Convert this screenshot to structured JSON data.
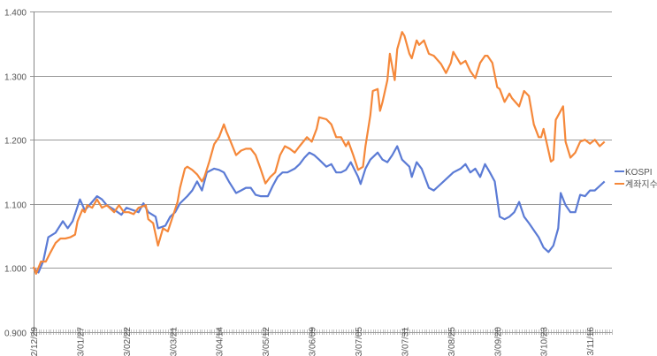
{
  "chart_data": {
    "type": "line",
    "title": "",
    "xlabel": "",
    "ylabel": "",
    "ylim": [
      0.9,
      1.4
    ],
    "xlim": [
      0,
      237
    ],
    "grid": true,
    "legend_position": "right",
    "y_ticks": [
      "0.900",
      "1.000",
      "1.100",
      "1.200",
      "1.300",
      "1.400"
    ],
    "y_tick_values": [
      0.9,
      1.0,
      1.1,
      1.2,
      1.3,
      1.4
    ],
    "x_ticks": [
      {
        "index": 0,
        "label": "22/12/29"
      },
      {
        "index": 19,
        "label": "23/01/27"
      },
      {
        "index": 38,
        "label": "23/02/22"
      },
      {
        "index": 57,
        "label": "23/03/21"
      },
      {
        "index": 76,
        "label": "23/04/14"
      },
      {
        "index": 95,
        "label": "23/05/12"
      },
      {
        "index": 114,
        "label": "23/06/09"
      },
      {
        "index": 133,
        "label": "23/07/05"
      },
      {
        "index": 152,
        "label": "23/07/31"
      },
      {
        "index": 171,
        "label": "23/08/25"
      },
      {
        "index": 190,
        "label": "23/09/20"
      },
      {
        "index": 209,
        "label": "23/10/23"
      },
      {
        "index": 228,
        "label": "23/11/16"
      }
    ],
    "series": [
      {
        "name": "KOSPI",
        "color": "#5b7bd5",
        "x": [
          0,
          2,
          4,
          6,
          9,
          12,
          14,
          16,
          19,
          21,
          24,
          26,
          28,
          30,
          33,
          36,
          38,
          41,
          43,
          45,
          47,
          50,
          51,
          54,
          56,
          58,
          60,
          63,
          65,
          67,
          69,
          71,
          74,
          76,
          78,
          80,
          83,
          85,
          87,
          89,
          91,
          93,
          96,
          98,
          100,
          102,
          104,
          107,
          109,
          111,
          113,
          115,
          117,
          120,
          122,
          124,
          126,
          128,
          130,
          133,
          134,
          136,
          138,
          141,
          143,
          145,
          147,
          149,
          151,
          154,
          155,
          157,
          159,
          162,
          164,
          166,
          168,
          170,
          172,
          175,
          177,
          179,
          181,
          183,
          185,
          187,
          189,
          191,
          193,
          195,
          197,
          199,
          201,
          203,
          205,
          207,
          209,
          211,
          213,
          215,
          216,
          218,
          220,
          222,
          224,
          226,
          228,
          230,
          232,
          234
        ],
        "values": [
          1.0,
          0.993,
          1.011,
          1.048,
          1.055,
          1.073,
          1.062,
          1.073,
          1.107,
          1.09,
          1.103,
          1.112,
          1.107,
          1.098,
          1.091,
          1.083,
          1.094,
          1.09,
          1.087,
          1.101,
          1.087,
          1.08,
          1.062,
          1.066,
          1.08,
          1.087,
          1.101,
          1.112,
          1.121,
          1.135,
          1.121,
          1.149,
          1.155,
          1.153,
          1.149,
          1.135,
          1.117,
          1.121,
          1.125,
          1.125,
          1.114,
          1.112,
          1.112,
          1.128,
          1.142,
          1.149,
          1.149,
          1.155,
          1.162,
          1.172,
          1.18,
          1.176,
          1.169,
          1.158,
          1.162,
          1.149,
          1.149,
          1.153,
          1.165,
          1.142,
          1.131,
          1.155,
          1.169,
          1.18,
          1.169,
          1.165,
          1.176,
          1.19,
          1.169,
          1.158,
          1.142,
          1.165,
          1.155,
          1.125,
          1.121,
          1.128,
          1.135,
          1.142,
          1.149,
          1.155,
          1.162,
          1.149,
          1.155,
          1.142,
          1.162,
          1.149,
          1.135,
          1.08,
          1.076,
          1.08,
          1.087,
          1.103,
          1.08,
          1.07,
          1.059,
          1.048,
          1.032,
          1.025,
          1.035,
          1.062,
          1.117,
          1.098,
          1.087,
          1.087,
          1.114,
          1.112,
          1.121,
          1.121,
          1.128,
          1.135
        ]
      },
      {
        "name": "계좌지수",
        "color": "#f5883a",
        "x": [
          0,
          1,
          3,
          5,
          7,
          9,
          11,
          13,
          15,
          17,
          18,
          20,
          21,
          22,
          24,
          26,
          28,
          30,
          33,
          35,
          37,
          39,
          41,
          43,
          46,
          47,
          49,
          51,
          53,
          55,
          57,
          59,
          60,
          62,
          63,
          65,
          67,
          69,
          70,
          72,
          74,
          76,
          78,
          79,
          80,
          83,
          85,
          87,
          89,
          91,
          93,
          95,
          97,
          99,
          101,
          103,
          105,
          107,
          109,
          112,
          114,
          116,
          117,
          120,
          122,
          124,
          126,
          128,
          129,
          131,
          133,
          135,
          136,
          138,
          139,
          141,
          142,
          143,
          145,
          146,
          148,
          149,
          151,
          152,
          154,
          155,
          157,
          158,
          160,
          162,
          164,
          167,
          169,
          171,
          172,
          175,
          177,
          179,
          181,
          183,
          185,
          186,
          188,
          190,
          191,
          193,
          195,
          196,
          199,
          201,
          203,
          205,
          207,
          208,
          209,
          212,
          213,
          214,
          217,
          218,
          220,
          222,
          224,
          226,
          228,
          230,
          232,
          234
        ],
        "values": [
          1.002,
          0.991,
          1.01,
          1.01,
          1.025,
          1.039,
          1.046,
          1.046,
          1.048,
          1.052,
          1.073,
          1.091,
          1.087,
          1.098,
          1.094,
          1.107,
          1.094,
          1.098,
          1.087,
          1.098,
          1.087,
          1.087,
          1.084,
          1.094,
          1.098,
          1.076,
          1.07,
          1.035,
          1.062,
          1.057,
          1.08,
          1.103,
          1.125,
          1.155,
          1.158,
          1.153,
          1.146,
          1.135,
          1.142,
          1.166,
          1.193,
          1.204,
          1.224,
          1.213,
          1.204,
          1.176,
          1.183,
          1.186,
          1.186,
          1.176,
          1.155,
          1.132,
          1.142,
          1.149,
          1.176,
          1.19,
          1.186,
          1.18,
          1.19,
          1.204,
          1.197,
          1.217,
          1.235,
          1.232,
          1.224,
          1.204,
          1.204,
          1.19,
          1.197,
          1.176,
          1.153,
          1.158,
          1.19,
          1.238,
          1.276,
          1.279,
          1.245,
          1.259,
          1.293,
          1.334,
          1.293,
          1.341,
          1.368,
          1.362,
          1.334,
          1.327,
          1.355,
          1.348,
          1.355,
          1.334,
          1.331,
          1.318,
          1.304,
          1.32,
          1.337,
          1.318,
          1.323,
          1.307,
          1.296,
          1.32,
          1.331,
          1.331,
          1.32,
          1.282,
          1.279,
          1.259,
          1.272,
          1.265,
          1.252,
          1.276,
          1.268,
          1.224,
          1.204,
          1.204,
          1.217,
          1.166,
          1.169,
          1.231,
          1.252,
          1.197,
          1.172,
          1.18,
          1.197,
          1.2,
          1.194,
          1.2,
          1.19,
          1.197
        ]
      }
    ]
  }
}
